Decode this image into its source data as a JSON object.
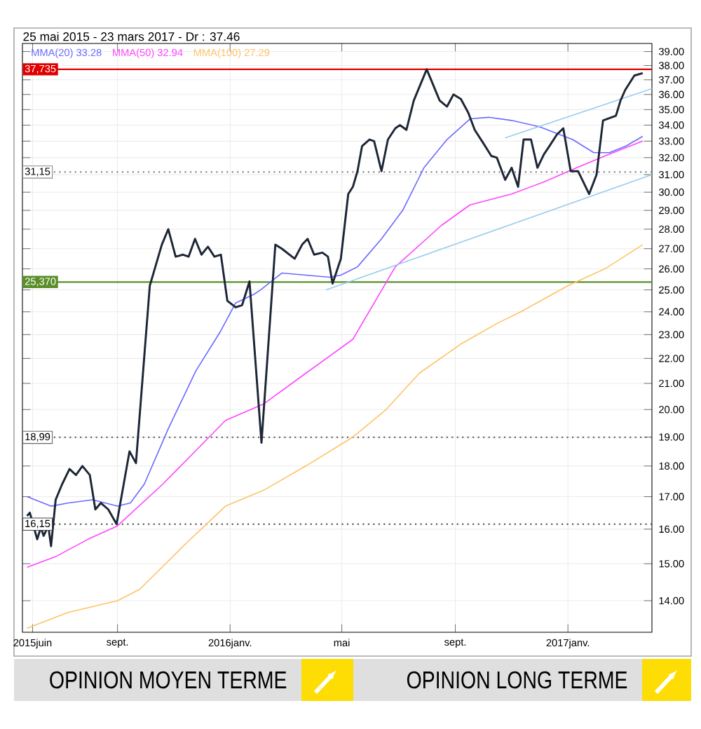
{
  "chart_data": {
    "type": "line",
    "title": "25 mai 2015 - 23 mars 2017 - Dr : 37.46",
    "log": "y",
    "grid": true,
    "legend": "top left",
    "marker": "none",
    "line_style": "solid",
    "xlim": [
      "2015-05-21",
      "2017-04-02"
    ],
    "ylim": [
      13.2,
      39.6
    ],
    "xticks": [
      {
        "value": "2015-06-01",
        "label": "2015juin"
      },
      {
        "value": "2015-09-01",
        "label": "sept."
      },
      {
        "value": "2016-01-01",
        "label": "2016janv."
      },
      {
        "value": "2016-05-01",
        "label": "mai"
      },
      {
        "value": "2016-09-01",
        "label": "sept."
      },
      {
        "value": "2017-01-01",
        "label": "2017janv."
      }
    ],
    "yticks": [
      {
        "value": 14,
        "label": "14.00"
      },
      {
        "value": 15,
        "label": "15.00"
      },
      {
        "value": 16,
        "label": "16.00"
      },
      {
        "value": 17,
        "label": "17.00"
      },
      {
        "value": 18,
        "label": "18.00"
      },
      {
        "value": 19,
        "label": "19.00"
      },
      {
        "value": 20,
        "label": "20.00"
      },
      {
        "value": 21,
        "label": "21.00"
      },
      {
        "value": 22,
        "label": "22.00"
      },
      {
        "value": 23,
        "label": "23.00"
      },
      {
        "value": 24,
        "label": "24.00"
      },
      {
        "value": 25,
        "label": "25.00"
      },
      {
        "value": 26,
        "label": "26.00"
      },
      {
        "value": 27,
        "label": "27.00"
      },
      {
        "value": 28,
        "label": "28.00"
      },
      {
        "value": 29,
        "label": "29.00"
      },
      {
        "value": 30,
        "label": "30.00"
      },
      {
        "value": 31,
        "label": "31.00"
      },
      {
        "value": 32,
        "label": "32.00"
      },
      {
        "value": 33,
        "label": "33.00"
      },
      {
        "value": 34,
        "label": "34.00"
      },
      {
        "value": 35,
        "label": "35.00"
      },
      {
        "value": 36,
        "label": "36.00"
      },
      {
        "value": 37,
        "label": "37.00"
      },
      {
        "value": 38,
        "label": "38.00"
      },
      {
        "value": 39,
        "label": "39.00"
      }
    ],
    "series": [
      {
        "color": "#1c2636",
        "x": [
          "2015-05-26",
          "2015-05-29",
          "2015-06-06",
          "2015-06-10",
          "2015-06-13",
          "2015-06-18",
          "2015-06-21",
          "2015-06-26",
          "2015-07-03",
          "2015-07-11",
          "2015-07-18",
          "2015-07-25",
          "2015-08-02",
          "2015-08-08",
          "2015-08-14",
          "2015-08-22",
          "2015-08-31",
          "2015-09-14",
          "2015-09-21",
          "2015-10-06",
          "2015-10-12",
          "2015-10-19",
          "2015-10-26",
          "2015-11-03",
          "2015-11-11",
          "2015-11-17",
          "2015-11-24",
          "2015-12-01",
          "2015-12-08",
          "2015-12-15",
          "2015-12-22",
          "2015-12-29",
          "2016-01-07",
          "2016-01-14",
          "2016-01-22",
          "2016-02-04",
          "2016-02-19",
          "2016-02-26",
          "2016-03-11",
          "2016-03-19",
          "2016-03-25",
          "2016-04-01",
          "2016-04-10",
          "2016-04-16",
          "2016-04-21",
          "2016-04-30",
          "2016-05-08",
          "2016-05-13",
          "2016-05-18",
          "2016-05-23",
          "2016-05-31",
          "2016-06-05",
          "2016-06-13",
          "2016-06-20",
          "2016-06-28",
          "2016-07-03",
          "2016-07-10",
          "2016-07-18",
          "2016-08-01",
          "2016-08-15",
          "2016-08-23",
          "2016-08-30",
          "2016-09-07",
          "2016-09-15",
          "2016-09-22",
          "2016-10-01",
          "2016-10-10",
          "2016-10-16",
          "2016-10-25",
          "2016-11-01",
          "2016-11-08",
          "2016-11-14",
          "2016-11-22",
          "2016-11-29",
          "2016-12-06",
          "2016-12-12",
          "2016-12-20",
          "2016-12-27",
          "2017-01-04",
          "2017-01-12",
          "2017-01-24",
          "2017-02-01",
          "2017-02-08",
          "2017-02-22",
          "2017-02-27",
          "2017-03-04",
          "2017-03-14",
          "2017-03-23"
        ],
        "values": [
          16.4,
          16.5,
          15.7,
          16.05,
          15.8,
          16.1,
          15.5,
          16.9,
          17.4,
          17.9,
          17.7,
          18.0,
          17.7,
          16.6,
          16.8,
          16.6,
          16.15,
          18.5,
          18.1,
          25.2,
          26.1,
          27.2,
          28.0,
          26.6,
          26.7,
          26.6,
          27.5,
          26.7,
          27.1,
          26.6,
          26.7,
          24.5,
          24.2,
          24.3,
          25.4,
          18.8,
          27.2,
          27.0,
          26.5,
          27.2,
          27.5,
          26.7,
          26.8,
          26.6,
          25.3,
          26.5,
          29.9,
          30.3,
          31.2,
          32.7,
          33.1,
          33.0,
          31.2,
          33.1,
          33.8,
          34.0,
          33.7,
          35.6,
          37.735,
          35.6,
          35.2,
          36.0,
          35.7,
          34.8,
          33.7,
          32.9,
          32.1,
          32.0,
          30.7,
          31.4,
          30.3,
          33.1,
          33.1,
          31.4,
          32.2,
          32.7,
          33.4,
          33.8,
          31.2,
          31.2,
          29.9,
          31.0,
          34.3,
          34.6,
          35.6,
          36.3,
          37.3,
          37.46
        ]
      },
      {
        "name": "MMA(20) 33.28",
        "color": "#6a6aff",
        "x": [
          "2015-05-26",
          "2015-06-21",
          "2015-07-10",
          "2015-08-05",
          "2015-09-01",
          "2015-09-15",
          "2015-09-30",
          "2015-10-26",
          "2015-11-25",
          "2015-12-21",
          "2016-01-07",
          "2016-01-27",
          "2016-02-03",
          "2016-02-26",
          "2016-03-23",
          "2016-04-18",
          "2016-04-30",
          "2016-05-18",
          "2016-06-13",
          "2016-07-06",
          "2016-07-29",
          "2016-08-23",
          "2016-09-17",
          "2016-10-07",
          "2016-11-01",
          "2016-12-01",
          "2017-01-06",
          "2017-01-29",
          "2017-02-15",
          "2017-03-05",
          "2017-03-23"
        ],
        "values": [
          17.0,
          16.7,
          16.8,
          16.9,
          16.7,
          16.8,
          17.4,
          19.3,
          21.5,
          23.1,
          24.4,
          24.8,
          25.0,
          25.8,
          25.7,
          25.6,
          25.7,
          26.1,
          27.5,
          29.0,
          31.4,
          33.1,
          34.4,
          34.5,
          34.3,
          33.9,
          33.1,
          32.3,
          32.3,
          32.7,
          33.3
        ]
      },
      {
        "name": "MMA(50) 32.94",
        "color": "#ff44ff",
        "x": [
          "2015-05-26",
          "2015-06-26",
          "2015-07-31",
          "2015-09-01",
          "2015-10-20",
          "2015-12-27",
          "2016-02-06",
          "2016-03-23",
          "2016-05-13",
          "2016-06-28",
          "2016-08-17",
          "2016-09-17",
          "2016-11-01",
          "2016-12-07",
          "2017-01-06",
          "2017-02-10",
          "2017-03-23"
        ],
        "values": [
          14.9,
          15.2,
          15.7,
          16.1,
          17.4,
          19.6,
          20.2,
          21.4,
          22.8,
          26.1,
          28.2,
          29.3,
          29.9,
          30.6,
          31.3,
          32.1,
          33.0
        ]
      },
      {
        "name": "MMA(100) 27.29",
        "color": "#ffc266",
        "x": [
          "2015-05-26",
          "2015-07-10",
          "2015-09-01",
          "2015-09-25",
          "2015-11-15",
          "2015-12-27",
          "2016-02-06",
          "2016-03-23",
          "2016-05-13",
          "2016-06-18",
          "2016-07-24",
          "2016-09-07",
          "2016-10-17",
          "2016-11-11",
          "2017-01-01",
          "2017-02-10",
          "2017-03-23"
        ],
        "values": [
          13.3,
          13.7,
          14.0,
          14.3,
          15.6,
          16.7,
          17.2,
          18.0,
          19.0,
          20.0,
          21.4,
          22.6,
          23.5,
          24.0,
          25.2,
          26.0,
          27.2
        ]
      },
      {
        "color": "#99ccee",
        "x": [
          "2016-04-14",
          "2017-04-02"
        ],
        "values": [
          25.0,
          31.0
        ]
      },
      {
        "color": "#99ccee",
        "x": [
          "2016-10-25",
          "2017-04-02"
        ],
        "values": [
          33.2,
          36.4
        ]
      }
    ],
    "ref_lines": [
      {
        "axis": "y",
        "value": 37.735,
        "label": "37,735",
        "color": "#e00000",
        "line_style": "solid"
      },
      {
        "axis": "y",
        "value": 31.15,
        "label": "31,15",
        "color": "#888888",
        "line_style": "dotted"
      },
      {
        "axis": "y",
        "value": 25.37,
        "label": "25,370",
        "color": "#5a8f29",
        "line_style": "solid"
      },
      {
        "axis": "y",
        "value": 18.99,
        "label": "18,99",
        "color": "#666666",
        "line_style": "dotted"
      },
      {
        "axis": "y",
        "value": 16.15,
        "label": "16,15",
        "color": "#444444",
        "line_style": "dotted"
      }
    ],
    "annotations": [
      "OPINION MOYEN TERME",
      "OPINION LONG TERME"
    ]
  }
}
